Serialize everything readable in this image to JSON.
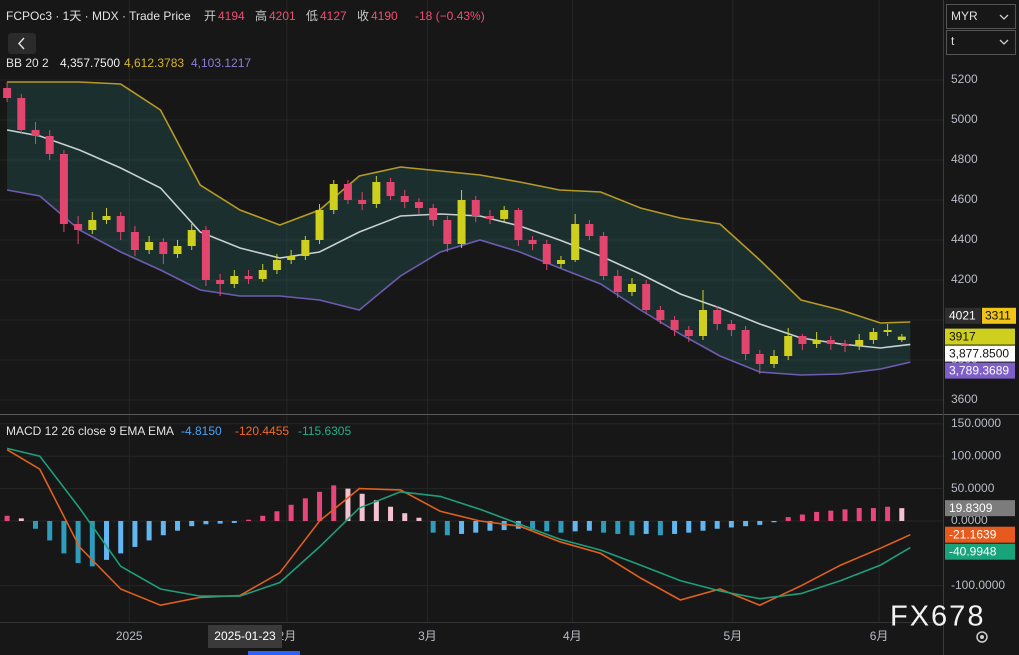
{
  "header": {
    "symbol": "FCPOc3 · 1天 · MDX · Trade Price",
    "ohlc": [
      {
        "label": "开",
        "value": 4194
      },
      {
        "label": "高",
        "value": 4201
      },
      {
        "label": "低",
        "value": 4127
      },
      {
        "label": "收",
        "value": 4190
      }
    ],
    "change": "-18 (−0.43%)"
  },
  "ui": {
    "currency": "MYR",
    "unit": "t",
    "cursor_date": "2025-01-23",
    "badge": "3311",
    "watermark": "FX678"
  },
  "chart_data": [
    {
      "type": "candlestick",
      "legend": "BB 20 2",
      "legend_values": [
        {
          "value": 4357.75,
          "label": "4,357.7500",
          "color": "#f0f0f0"
        },
        {
          "value": 4612.3783,
          "label": "4,612.3783",
          "color": "#d4b429"
        },
        {
          "value": 4103.1217,
          "label": "4,103.1217",
          "color": "#8e7cd6"
        }
      ],
      "up_color": "#cfd01e",
      "down_color": "#e2456e",
      "grid": true,
      "xlim": [
        -0.5,
        65.9
      ],
      "xticks": [
        {
          "value": 8.6,
          "label": "2025"
        },
        {
          "value": 19.7,
          "label": "2月"
        },
        {
          "value": 29.6,
          "label": "3月"
        },
        {
          "value": 39.8,
          "label": "4月"
        },
        {
          "value": 51.1,
          "label": "5月"
        },
        {
          "value": 61.4,
          "label": "6月"
        }
      ],
      "ylim": [
        3530,
        5600
      ],
      "yticks": [
        3600,
        3800,
        4000,
        4200,
        4400,
        4600,
        4800,
        5000,
        5200
      ],
      "x": [
        0,
        1,
        2,
        3,
        4,
        5,
        6,
        7,
        8,
        9,
        10,
        11,
        12,
        13,
        14,
        15,
        16,
        17,
        18,
        19,
        20,
        21,
        22,
        23,
        24,
        25,
        26,
        27,
        28,
        29,
        30,
        31,
        32,
        33,
        34,
        35,
        36,
        37,
        38,
        39,
        40,
        41,
        42,
        43,
        44,
        45,
        46,
        47,
        48,
        49,
        50,
        51,
        52,
        53,
        54,
        55,
        56,
        57,
        58,
        59,
        60,
        61,
        62,
        63
      ],
      "open": [
        5160,
        5110,
        4950,
        4920,
        4830,
        4480,
        4450,
        4500,
        4520,
        4440,
        4350,
        4390,
        4330,
        4370,
        4450,
        4200,
        4180,
        4220,
        4205,
        4250,
        4300,
        4320,
        4400,
        4550,
        4680,
        4600,
        4580,
        4690,
        4620,
        4590,
        4560,
        4500,
        4380,
        4600,
        4520,
        4505,
        4550,
        4400,
        4380,
        4280,
        4300,
        4480,
        4420,
        4220,
        4140,
        4180,
        4050,
        4000,
        3950,
        3920,
        4050,
        3980,
        3950,
        3830,
        3780,
        3820,
        3920,
        3880,
        3900,
        3880,
        3870,
        3900,
        3940,
        3900
      ],
      "high": [
        5190,
        5130,
        4990,
        4950,
        4850,
        4520,
        4540,
        4560,
        4540,
        4470,
        4420,
        4410,
        4400,
        4480,
        4470,
        4230,
        4250,
        4250,
        4280,
        4330,
        4350,
        4420,
        4580,
        4700,
        4700,
        4640,
        4720,
        4710,
        4650,
        4610,
        4580,
        4520,
        4650,
        4620,
        4550,
        4570,
        4560,
        4420,
        4400,
        4320,
        4530,
        4500,
        4440,
        4250,
        4210,
        4200,
        4070,
        4020,
        3970,
        4150,
        4070,
        4000,
        3970,
        3850,
        3850,
        3960,
        3930,
        3940,
        3920,
        3900,
        3930,
        3960,
        3980,
        3930
      ],
      "low": [
        5090,
        4930,
        4880,
        4800,
        4440,
        4380,
        4430,
        4480,
        4400,
        4320,
        4330,
        4280,
        4310,
        4350,
        4170,
        4120,
        4160,
        4180,
        4190,
        4230,
        4280,
        4300,
        4380,
        4530,
        4580,
        4550,
        4560,
        4600,
        4560,
        4530,
        4470,
        4340,
        4360,
        4490,
        4480,
        4490,
        4370,
        4350,
        4250,
        4260,
        4290,
        4400,
        4200,
        4110,
        4120,
        4030,
        3980,
        3920,
        3890,
        3900,
        3950,
        3920,
        3800,
        3730,
        3760,
        3800,
        3850,
        3860,
        3850,
        3840,
        3850,
        3880,
        3920,
        3890
      ],
      "close": [
        5110,
        4950,
        4920,
        4830,
        4480,
        4450,
        4500,
        4520,
        4440,
        4350,
        4390,
        4330,
        4370,
        4450,
        4200,
        4180,
        4220,
        4205,
        4250,
        4300,
        4320,
        4400,
        4550,
        4680,
        4600,
        4580,
        4690,
        4620,
        4590,
        4560,
        4500,
        4380,
        4600,
        4520,
        4505,
        4550,
        4400,
        4380,
        4280,
        4300,
        4480,
        4420,
        4220,
        4140,
        4180,
        4050,
        4000,
        3950,
        3920,
        4050,
        3980,
        3950,
        3830,
        3780,
        3820,
        3920,
        3880,
        3900,
        3880,
        3870,
        3900,
        3940,
        3950,
        3917
      ],
      "bands": {
        "fill": "rgba(38,110,110,0.28)",
        "x": [
          0,
          2.3,
          5.1,
          8,
          10.8,
          13.6,
          16.4,
          19.2,
          22,
          24.8,
          27.7,
          30.5,
          33.3,
          36.1,
          38.9,
          41.8,
          44.6,
          47.4,
          50.2,
          53,
          55.9,
          58.7,
          61.5,
          63.6
        ],
        "series": [
          {
            "color": "#b59a26",
            "values": [
              5190,
              5190,
              5190,
              5180,
              5050,
              4675,
              4550,
              4475,
              4550,
              4720,
              4765,
              4745,
              4725,
              4690,
              4650,
              4640,
              4560,
              4510,
              4480,
              4300,
              4100,
              4050,
              3985,
              3990
            ]
          },
          {
            "color": "#c9d0d0",
            "values": [
              4950,
              4920,
              4850,
              4760,
              4660,
              4440,
              4360,
              4310,
              4340,
              4440,
              4520,
              4530,
              4520,
              4470,
              4400,
              4320,
              4230,
              4130,
              4060,
              3980,
              3910,
              3880,
              3860,
              3877.85
            ]
          },
          {
            "color": "#6f5bb0",
            "values": [
              4650,
              4620,
              4450,
              4340,
              4250,
              4150,
              4120,
              4120,
              4100,
              4050,
              4220,
              4340,
              4400,
              4340,
              4260,
              4180,
              4050,
              3930,
              3820,
              3740,
              3725,
              3730,
              3755,
              3789.3689
            ]
          }
        ]
      },
      "markers": [
        {
          "value": 4021,
          "label": "4021",
          "color": "#2e2e2e",
          "text_color": "#ffffff"
        },
        {
          "value": 3917,
          "label": "3917",
          "color": "#cfd01e",
          "text_color": "#111111"
        },
        {
          "value": 3877.85,
          "label": "3,877.8500",
          "color": "#ffffff",
          "text_color": "#111111"
        },
        {
          "value": 3789.3689,
          "label": "3,789.3689",
          "color": "#7e5fc8",
          "text_color": "#ffffff"
        }
      ]
    },
    {
      "type": "macd",
      "legend": "MACD 12 26 close 9 EMA EMA",
      "legend_values": [
        {
          "value": -4.815,
          "label": "-4.8150",
          "color": "#4aa3f0"
        },
        {
          "value": -120.4455,
          "label": "-120.4455",
          "color": "#f06a2a"
        },
        {
          "value": -115.6305,
          "label": "-115.6305",
          "color": "#22b08a"
        }
      ],
      "grid": true,
      "ylim": [
        -155.9,
        163.6
      ],
      "yticks": [
        {
          "value": -100,
          "label": "-100.0000"
        },
        {
          "value": 0,
          "label": "0.0000"
        },
        {
          "value": 50,
          "label": "50.0000"
        },
        {
          "value": 100,
          "label": "100.0000"
        },
        {
          "value": 150,
          "label": "150.0000"
        }
      ],
      "histogram": {
        "colors": [
          "#e8457a",
          "#f2c2d0",
          "#2f9cbc",
          "#62b6f2"
        ],
        "values": [
          8,
          4,
          -12,
          -30,
          -50,
          -65,
          -70,
          -60,
          -50,
          -40,
          -30,
          -22,
          -15,
          -8,
          -5,
          -4,
          -3,
          2,
          8,
          15,
          25,
          35,
          45,
          55,
          50,
          42,
          32,
          22,
          12,
          5,
          -18,
          -22,
          -20,
          -18,
          -15,
          -14,
          -12,
          -14,
          -16,
          -18,
          -16,
          -15,
          -18,
          -20,
          -22,
          -20,
          -22,
          -20,
          -18,
          -15,
          -12,
          -10,
          -8,
          -6,
          -2,
          6,
          10,
          14,
          16,
          18,
          20,
          20,
          22,
          19.8309
        ]
      },
      "lines": {
        "x": [
          0,
          2.3,
          5.1,
          8,
          10.8,
          13.6,
          16.4,
          19.2,
          22,
          24.8,
          27.7,
          30.5,
          33.3,
          36.1,
          38.9,
          41.8,
          44.6,
          47.4,
          50.2,
          53,
          55.9,
          58.7,
          61.5,
          63.6
        ],
        "series": [
          {
            "color": "#e0601e",
            "values": [
              110,
              80,
              -40,
              -105,
              -130,
              -118,
              -115,
              -80,
              0,
              50,
              48,
              15,
              0,
              -8,
              -32,
              -50,
              -88,
              -122,
              -105,
              -130,
              -100,
              -68,
              -42,
              -21.1639
            ]
          },
          {
            "color": "#1e9e7a",
            "values": [
              112,
              100,
              20,
              -70,
              -105,
              -116,
              -116,
              -95,
              -40,
              20,
              45,
              38,
              18,
              -5,
              -28,
              -45,
              -68,
              -92,
              -108,
              -120,
              -112,
              -92,
              -68,
              -40.9948
            ]
          }
        ]
      },
      "markers": [
        {
          "value": 19.8309,
          "label": "19.8309",
          "color": "#7c7c7c",
          "text_color": "#ffffff"
        },
        {
          "value": -21.1639,
          "label": "-21.1639",
          "color": "#e65a1e",
          "text_color": "#ffffff"
        },
        {
          "value": -40.9948,
          "label": "-40.9948",
          "color": "#19a37a",
          "text_color": "#ffffff"
        }
      ]
    }
  ]
}
